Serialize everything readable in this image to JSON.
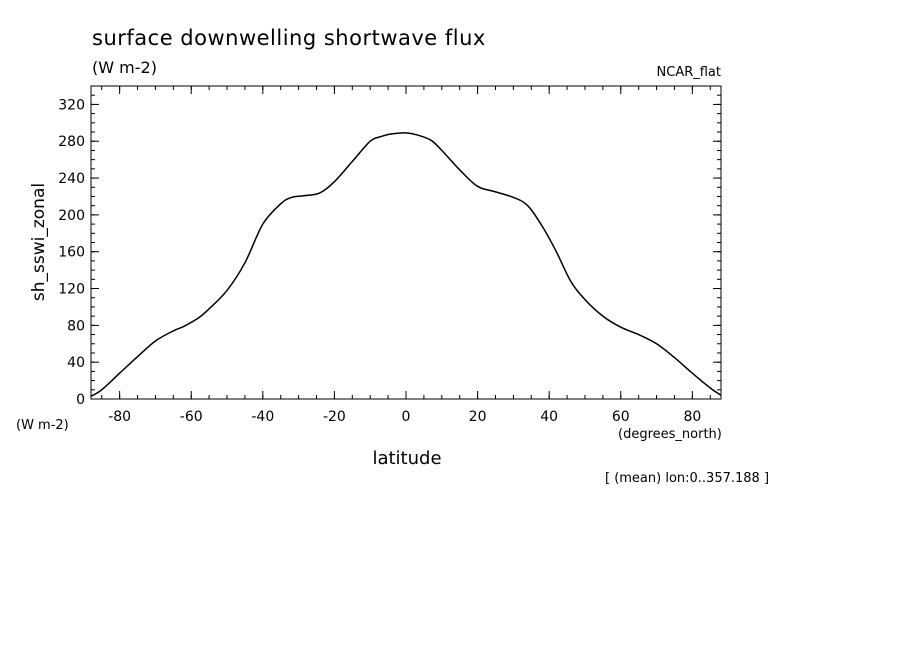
{
  "chart_data": {
    "type": "line",
    "title": "surface downwelling shortwave flux",
    "subtitle": "(W m-2)",
    "dataset_label": "NCAR_flat",
    "ylabel": "sh_sswi_zonal",
    "y_units": "(W m-2)",
    "xlabel": "latitude",
    "x_units": "(degrees_north)",
    "footnote": "[ (mean) lon:0..357.188 ]",
    "xlim": [
      -88,
      88
    ],
    "ylim": [
      0,
      340
    ],
    "xticks": [
      -80,
      -60,
      -40,
      -20,
      0,
      20,
      40,
      60,
      80
    ],
    "xtick_labels": [
      "-80",
      "-60",
      "-40",
      "-20",
      "0",
      "20",
      "40",
      "60",
      "80"
    ],
    "yticks": [
      0,
      40,
      80,
      120,
      160,
      200,
      240,
      280,
      320
    ],
    "ytick_labels": [
      "0",
      "40",
      "80",
      "120",
      "160",
      "200",
      "240",
      "280",
      "320"
    ],
    "grid": false,
    "series": [
      {
        "x": [
          -88,
          -85,
          -80,
          -75,
          -70,
          -65,
          -62,
          -58,
          -55,
          -50,
          -45,
          -40,
          -35,
          -32,
          -28,
          -24,
          -20,
          -15,
          -10,
          -7,
          -4,
          0,
          3,
          7,
          10,
          15,
          20,
          25,
          30,
          34,
          38,
          42,
          46,
          50,
          55,
          60,
          65,
          70,
          75,
          80,
          85,
          88
        ],
        "y": [
          3,
          10,
          28,
          46,
          63,
          74,
          79,
          88,
          98,
          118,
          148,
          190,
          212,
          219,
          221,
          224,
          236,
          258,
          280,
          285,
          288,
          289,
          287,
          281,
          270,
          249,
          231,
          225,
          219,
          210,
          188,
          160,
          128,
          108,
          90,
          78,
          70,
          60,
          45,
          28,
          12,
          4
        ]
      }
    ]
  }
}
